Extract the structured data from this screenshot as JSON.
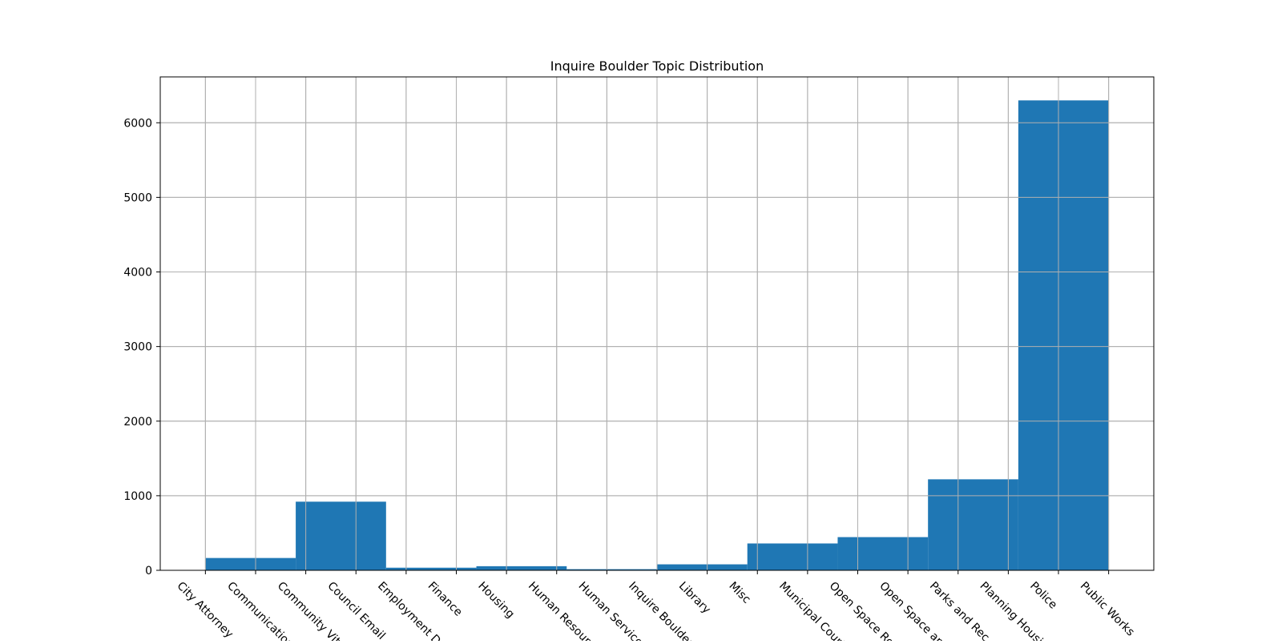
{
  "chart_data": {
    "type": "bar",
    "title": "Inquire Boulder Topic Distribution",
    "xlabel": "",
    "ylabel": "",
    "x_tick_labels": [
      "City Attorney",
      "Communications",
      "Community Vitality",
      "Council Email",
      "Employment D",
      "Finance",
      "Housing",
      "Human Resources",
      "Human Services",
      "Inquire Boulder",
      "Library",
      "Misc",
      "Municipal Court",
      "Open Space Re",
      "Open Space an",
      "Parks and Rec",
      "Planning Housing",
      "Police",
      "Public Works"
    ],
    "x_tick_positions": [
      0,
      1,
      2,
      3,
      4,
      5,
      6,
      7,
      8,
      9,
      10,
      11,
      12,
      13,
      14,
      15,
      16,
      17,
      18
    ],
    "bins": [
      {
        "start": 0.0,
        "end": 1.8,
        "value": 165
      },
      {
        "start": 1.8,
        "end": 3.6,
        "value": 920
      },
      {
        "start": 3.6,
        "end": 5.4,
        "value": 35
      },
      {
        "start": 5.4,
        "end": 7.2,
        "value": 55
      },
      {
        "start": 7.2,
        "end": 9.0,
        "value": 15
      },
      {
        "start": 9.0,
        "end": 10.8,
        "value": 80
      },
      {
        "start": 10.8,
        "end": 12.6,
        "value": 360
      },
      {
        "start": 12.6,
        "end": 14.4,
        "value": 445
      },
      {
        "start": 14.4,
        "end": 16.2,
        "value": 1220
      },
      {
        "start": 16.2,
        "end": 18.0,
        "value": 6300
      }
    ],
    "y_ticks": [
      0,
      1000,
      2000,
      3000,
      4000,
      5000,
      6000
    ],
    "xlim": [
      -0.9,
      18.9
    ],
    "ylim": [
      0,
      6615
    ],
    "grid": true,
    "bar_color": "#1f77b4",
    "grid_color": "#b0b0b0"
  }
}
